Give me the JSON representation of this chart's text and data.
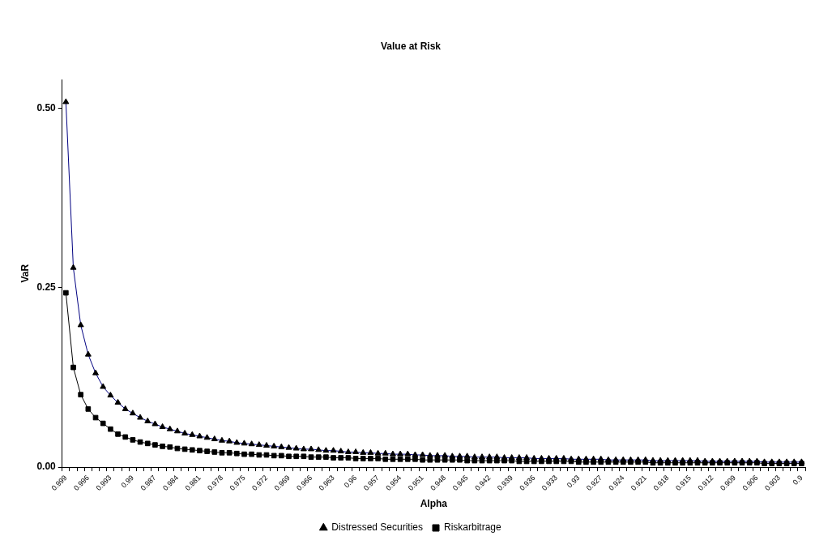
{
  "chart_data": {
    "type": "line",
    "title": "Value at Risk",
    "xlabel": "Alpha",
    "ylabel": "VaR",
    "categories": [
      "0.999",
      null,
      null,
      "0.996",
      null,
      null,
      "0.993",
      null,
      null,
      "0.99",
      null,
      null,
      "0.987",
      null,
      null,
      "0.984",
      null,
      null,
      "0.981",
      null,
      null,
      "0.978",
      null,
      null,
      "0.975",
      null,
      null,
      "0.972",
      null,
      null,
      "0.969",
      null,
      null,
      "0.966",
      null,
      null,
      "0.963",
      null,
      null,
      "0.96",
      null,
      null,
      "0.957",
      null,
      null,
      "0.954",
      null,
      null,
      "0.951",
      null,
      null,
      "0.948",
      null,
      null,
      "0.945",
      null,
      null,
      "0.942",
      null,
      null,
      "0.939",
      null,
      null,
      "0.936",
      null,
      null,
      "0.933",
      null,
      null,
      "0.93",
      null,
      null,
      "0.927",
      null,
      null,
      "0.924",
      null,
      null,
      "0.921",
      null,
      null,
      "0.918",
      null,
      null,
      "0.915",
      null,
      null,
      "0.912",
      null,
      null,
      "0.909",
      null,
      null,
      "0.906",
      null,
      null,
      "0.903",
      null,
      null,
      "0.9"
    ],
    "series": [
      {
        "name": "Distressed Securities",
        "color": "#000080",
        "marker": "triangle",
        "values": [
          0.509,
          0.278,
          0.198,
          0.157,
          0.131,
          0.112,
          0.1,
          0.09,
          0.081,
          0.075,
          0.069,
          0.064,
          0.06,
          0.056,
          0.053,
          0.05,
          0.047,
          0.045,
          0.043,
          0.041,
          0.039,
          0.037,
          0.036,
          0.034,
          0.033,
          0.032,
          0.031,
          0.03,
          0.029,
          0.028,
          0.027,
          0.026,
          0.025,
          0.025,
          0.024,
          0.023,
          0.023,
          0.022,
          0.021,
          0.021,
          0.02,
          0.02,
          0.019,
          0.019,
          0.018,
          0.018,
          0.018,
          0.017,
          0.017,
          0.016,
          0.016,
          0.016,
          0.015,
          0.015,
          0.015,
          0.014,
          0.014,
          0.014,
          0.014,
          0.013,
          0.013,
          0.013,
          0.013,
          0.012,
          0.012,
          0.012,
          0.012,
          0.012,
          0.011,
          0.011,
          0.011,
          0.011,
          0.011,
          0.01,
          0.01,
          0.01,
          0.01,
          0.01,
          0.01,
          0.009,
          0.009,
          0.009,
          0.009,
          0.009,
          0.009,
          0.009,
          0.008,
          0.008,
          0.008,
          0.008,
          0.008,
          0.008,
          0.008,
          0.008,
          0.007,
          0.007,
          0.007,
          0.007,
          0.007,
          0.007
        ]
      },
      {
        "name": "Riskarbitrage",
        "color": "#000000",
        "marker": "square",
        "values": [
          0.243,
          0.139,
          0.101,
          0.081,
          0.069,
          0.061,
          0.053,
          0.046,
          0.042,
          0.038,
          0.035,
          0.033,
          0.031,
          0.029,
          0.028,
          0.026,
          0.025,
          0.024,
          0.023,
          0.022,
          0.021,
          0.02,
          0.02,
          0.019,
          0.018,
          0.018,
          0.017,
          0.017,
          0.016,
          0.016,
          0.015,
          0.015,
          0.015,
          0.014,
          0.014,
          0.014,
          0.013,
          0.013,
          0.013,
          0.012,
          0.012,
          0.012,
          0.012,
          0.011,
          0.011,
          0.011,
          0.011,
          0.011,
          0.01,
          0.01,
          0.01,
          0.01,
          0.01,
          0.01,
          0.009,
          0.009,
          0.009,
          0.009,
          0.009,
          0.009,
          0.009,
          0.008,
          0.008,
          0.008,
          0.008,
          0.008,
          0.008,
          0.008,
          0.008,
          0.007,
          0.007,
          0.007,
          0.007,
          0.007,
          0.007,
          0.007,
          0.007,
          0.007,
          0.007,
          0.006,
          0.006,
          0.006,
          0.006,
          0.006,
          0.006,
          0.006,
          0.006,
          0.006,
          0.006,
          0.006,
          0.006,
          0.006,
          0.006,
          0.006,
          0.005,
          0.005,
          0.005,
          0.005,
          0.005,
          0.005
        ]
      }
    ],
    "ylim": [
      0,
      0.54
    ],
    "yticks": [
      {
        "value": 0,
        "label": "0.00"
      },
      {
        "value": 0.25,
        "label": "0.25"
      },
      {
        "value": 0.5,
        "label": "0.50"
      }
    ],
    "grid": false,
    "legend": "bottom",
    "line_style": "solid"
  }
}
